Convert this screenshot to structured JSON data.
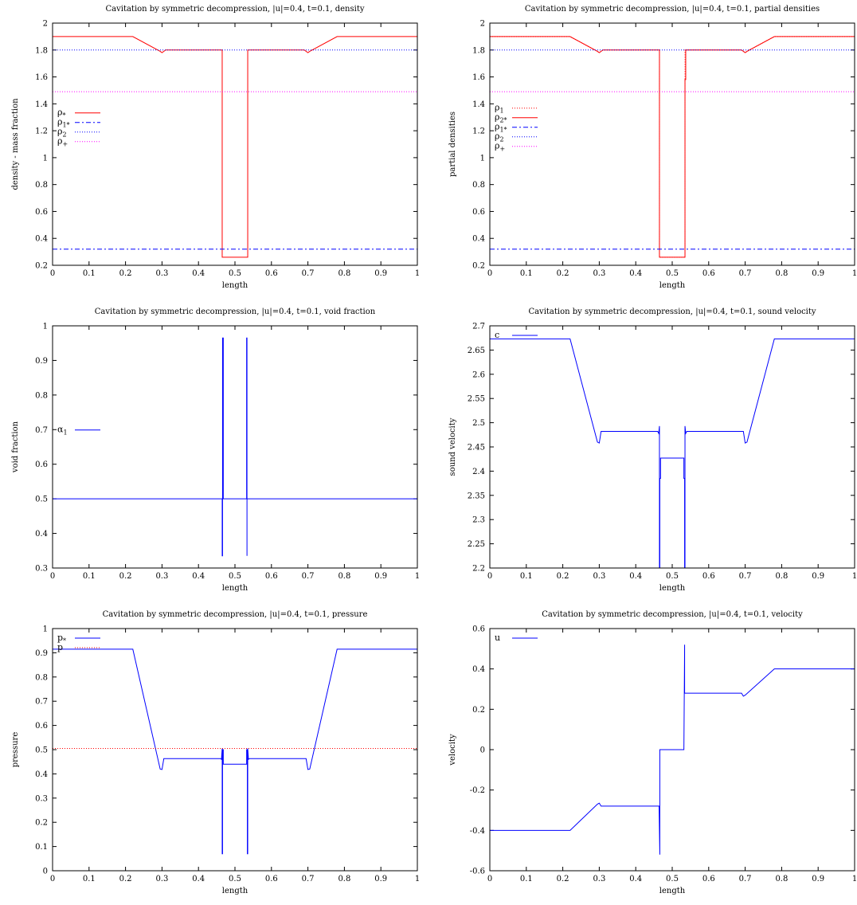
{
  "chart_data": [
    {
      "type": "line",
      "title": "Cavitation by  symmetric decompression, |u|=0.4, t=0.1, density",
      "xlabel": "length",
      "ylabel": "density - mass fraction",
      "xlim": [
        0,
        1
      ],
      "ylim": [
        0.2,
        2
      ],
      "xticks": [
        "0",
        "0.1",
        "0.2",
        "0.3",
        "0.4",
        "0.5",
        "0.6",
        "0.7",
        "0.8",
        "0.9",
        "1"
      ],
      "yticks": [
        "0.2",
        "0.4",
        "0.6",
        "0.8",
        "1",
        "1.2",
        "1.4",
        "1.6",
        "1.8",
        "2"
      ],
      "legend_position": "left-middle",
      "series": [
        {
          "name": "ρ *",
          "color": "#ff0000",
          "dash": "solid",
          "x": [
            0,
            0.22,
            0.295,
            0.3,
            0.31,
            0.465,
            0.465,
            0.535,
            0.535,
            0.69,
            0.7,
            0.705,
            0.78,
            1
          ],
          "y": [
            1.9,
            1.9,
            1.79,
            1.78,
            1.8,
            1.8,
            0.26,
            0.26,
            1.8,
            1.8,
            1.78,
            1.79,
            1.9,
            1.9
          ]
        },
        {
          "name": "ρ1*",
          "color": "#0000ff",
          "dash": "6,3,2,3",
          "x": [
            0,
            1
          ],
          "y": [
            0.32,
            0.32
          ]
        },
        {
          "name": "ρ2",
          "color": "#0000ff",
          "dash": "1,2",
          "x": [
            0,
            1
          ],
          "y": [
            1.8,
            1.8
          ]
        },
        {
          "name": "ρ+",
          "color": "#ff00ff",
          "dash": "1,2",
          "x": [
            0,
            1
          ],
          "y": [
            1.49,
            1.49
          ]
        }
      ]
    },
    {
      "type": "line",
      "title": "Cavitation by  symmetric decompression, |u|=0.4, t=0.1, partial densities",
      "xlabel": "length",
      "ylabel": "partial densities",
      "xlim": [
        0,
        1
      ],
      "ylim": [
        0.2,
        2
      ],
      "xticks": [
        "0",
        "0.1",
        "0.2",
        "0.3",
        "0.4",
        "0.5",
        "0.6",
        "0.7",
        "0.8",
        "0.9",
        "1"
      ],
      "yticks": [
        "0.2",
        "0.4",
        "0.6",
        "0.8",
        "1",
        "1.2",
        "1.4",
        "1.6",
        "1.8",
        "2"
      ],
      "legend_position": "left-middle",
      "series": [
        {
          "name": "ρ1",
          "color": "#ff0000",
          "dash": "1,2",
          "x": [
            0,
            0.22,
            0.295,
            0.3,
            0.31,
            0.465,
            0.465,
            0.535,
            0.535,
            0.69,
            0.7,
            0.705,
            0.78,
            1
          ],
          "y": [
            1.9,
            1.9,
            1.79,
            1.78,
            1.8,
            1.8,
            0.26,
            0.26,
            1.8,
            1.8,
            1.78,
            1.79,
            1.9,
            1.9
          ]
        },
        {
          "name": "ρ2*",
          "color": "#ff0000",
          "dash": "solid",
          "x": [
            0,
            0.22,
            0.295,
            0.3,
            0.31,
            0.465,
            0.465,
            0.535,
            0.535,
            0.537,
            0.537,
            0.69,
            0.7,
            0.705,
            0.78,
            1
          ],
          "y": [
            1.9,
            1.9,
            1.79,
            1.78,
            1.8,
            1.8,
            0.26,
            0.26,
            1.58,
            1.58,
            1.8,
            1.8,
            1.78,
            1.79,
            1.9,
            1.9
          ]
        },
        {
          "name": "ρ1*",
          "color": "#0000ff",
          "dash": "6,3,2,3",
          "x": [
            0,
            1
          ],
          "y": [
            0.32,
            0.32
          ]
        },
        {
          "name": "ρ2",
          "color": "#0000ff",
          "dash": "1,2",
          "x": [
            0,
            1
          ],
          "y": [
            1.8,
            1.8
          ]
        },
        {
          "name": "ρ+",
          "color": "#ff00ff",
          "dash": "1,2",
          "x": [
            0,
            1
          ],
          "y": [
            1.49,
            1.49
          ]
        }
      ]
    },
    {
      "type": "line",
      "title": "Cavitation by  symmetric decompression, |u|=0.4, t=0.1, void fraction",
      "xlabel": "length",
      "ylabel": "void fraction",
      "xlim": [
        0,
        1
      ],
      "ylim": [
        0.3,
        1
      ],
      "xticks": [
        "0",
        "0.1",
        "0.2",
        "0.3",
        "0.4",
        "0.5",
        "0.6",
        "0.7",
        "0.8",
        "0.9",
        "1"
      ],
      "yticks": [
        "0.3",
        "0.4",
        "0.5",
        "0.6",
        "0.7",
        "0.8",
        "0.9",
        "1"
      ],
      "legend_position": "left-middle",
      "series": [
        {
          "name": "α1",
          "color": "#0000ff",
          "dash": "solid",
          "x": [
            0,
            0.465,
            0.465,
            0.466,
            0.466,
            0.468,
            0.468,
            1
          ],
          "y": [
            0.5,
            0.5,
            0.335,
            0.335,
            0.965,
            0.965,
            0.5,
            0.5
          ]
        },
        {
          "name": "",
          "color": "#0000ff",
          "dash": "solid",
          "x": [
            0.532,
            0.532,
            0.533,
            0.533
          ],
          "y": [
            0.5,
            0.965,
            0.965,
            0.335
          ]
        }
      ]
    },
    {
      "type": "line",
      "title": "Cavitation by  symmetric decompression, |u|=0.4, t=0.1, sound velocity",
      "xlabel": "length",
      "ylabel": "sound velocity",
      "xlim": [
        0,
        1
      ],
      "ylim": [
        2.2,
        2.7
      ],
      "xticks": [
        "0",
        "0.1",
        "0.2",
        "0.3",
        "0.4",
        "0.5",
        "0.6",
        "0.7",
        "0.8",
        "0.9",
        "1"
      ],
      "yticks": [
        "2.2",
        "2.25",
        "2.3",
        "2.35",
        "2.4",
        "2.45",
        "2.5",
        "2.55",
        "2.6",
        "2.65",
        "2.7"
      ],
      "legend_position": "top-left",
      "series": [
        {
          "name": "c",
          "color": "#0000ff",
          "dash": "solid",
          "x": [
            0,
            0.22,
            0.295,
            0.3,
            0.305,
            0.46,
            0.463,
            0.465,
            0.465,
            0.466,
            0.466,
            0.468,
            0.468,
            0.47,
            0.53,
            0.532,
            0.532,
            0.534,
            0.534,
            0.535,
            0.535,
            0.537,
            0.54,
            0.695,
            0.7,
            0.705,
            0.78,
            1
          ],
          "y": [
            2.673,
            2.673,
            2.46,
            2.458,
            2.482,
            2.482,
            2.478,
            2.493,
            2.2,
            2.2,
            2.385,
            2.385,
            2.427,
            2.427,
            2.427,
            2.427,
            2.385,
            2.385,
            2.2,
            2.2,
            2.493,
            2.478,
            2.482,
            2.482,
            2.458,
            2.46,
            2.673,
            2.673
          ]
        }
      ]
    },
    {
      "type": "line",
      "title": "Cavitation by  symmetric decompression, |u|=0.4, t=0.1, pressure",
      "xlabel": "length",
      "ylabel": "pressure",
      "xlim": [
        0,
        1
      ],
      "ylim": [
        0,
        1
      ],
      "xticks": [
        "0",
        "0.1",
        "0.2",
        "0.3",
        "0.4",
        "0.5",
        "0.6",
        "0.7",
        "0.8",
        "0.9",
        "1"
      ],
      "yticks": [
        "0",
        "0.1",
        "0.2",
        "0.3",
        "0.4",
        "0.5",
        "0.6",
        "0.7",
        "0.8",
        "0.9",
        "1"
      ],
      "legend_position": "top-left",
      "series": [
        {
          "name": "p*",
          "color": "#0000ff",
          "dash": "solid",
          "x": [
            0,
            0.22,
            0.295,
            0.3,
            0.305,
            0.46,
            0.463,
            0.465,
            0.465,
            0.466,
            0.466,
            0.468,
            0.468,
            0.47,
            0.53,
            0.532,
            0.532,
            0.534,
            0.534,
            0.535,
            0.535,
            0.537,
            0.54,
            0.695,
            0.7,
            0.705,
            0.78,
            1
          ],
          "y": [
            0.915,
            0.915,
            0.42,
            0.418,
            0.463,
            0.463,
            0.46,
            0.505,
            0.07,
            0.07,
            0.5,
            0.5,
            0.44,
            0.44,
            0.44,
            0.44,
            0.5,
            0.5,
            0.07,
            0.07,
            0.505,
            0.46,
            0.463,
            0.463,
            0.418,
            0.42,
            0.915,
            0.915
          ]
        },
        {
          "name": "p",
          "color": "#ff0000",
          "dash": "1,2",
          "x": [
            0,
            1
          ],
          "y": [
            0.505,
            0.505
          ]
        }
      ]
    },
    {
      "type": "line",
      "title": "Cavitation by  symmetric decompression, |u|=0.4, t=0.1, velocity",
      "xlabel": "length",
      "ylabel": "velocity",
      "xlim": [
        0,
        1
      ],
      "ylim": [
        -0.6,
        0.6
      ],
      "xticks": [
        "0",
        "0.1",
        "0.2",
        "0.3",
        "0.4",
        "0.5",
        "0.6",
        "0.7",
        "0.8",
        "0.9",
        "1"
      ],
      "yticks": [
        "-0.6",
        "-0.4",
        "-0.2",
        "0",
        "0.2",
        "0.4",
        "0.6"
      ],
      "legend_position": "top-left",
      "series": [
        {
          "name": "u",
          "color": "#0000ff",
          "dash": "solid",
          "x": [
            0,
            0.22,
            0.295,
            0.3,
            0.305,
            0.462,
            0.464,
            0.466,
            0.466,
            0.468,
            0.53,
            0.532,
            0.534,
            0.534,
            0.536,
            0.69,
            0.695,
            0.7,
            0.78,
            1
          ],
          "y": [
            -0.4,
            -0.4,
            -0.27,
            -0.265,
            -0.28,
            -0.28,
            -0.28,
            -0.52,
            0,
            0,
            0,
            0,
            0.52,
            0.28,
            0.28,
            0.28,
            0.265,
            0.27,
            0.4,
            0.4
          ]
        }
      ]
    }
  ]
}
